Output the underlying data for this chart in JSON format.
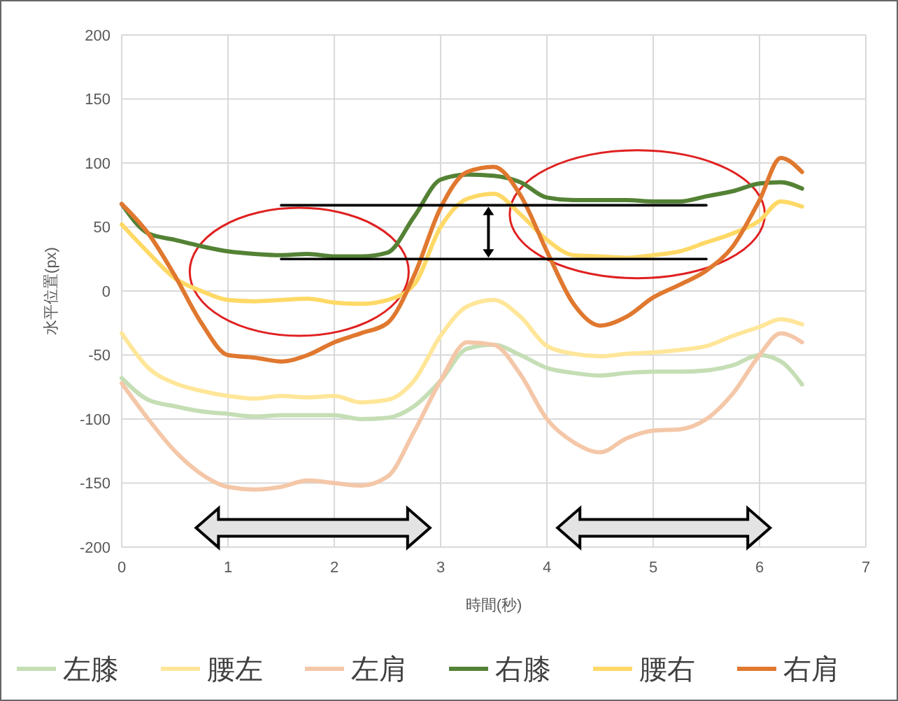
{
  "chart_data": {
    "type": "line",
    "xlabel": "時間(秒)",
    "ylabel": "水平位置(px)",
    "x": [
      0,
      0.25,
      0.5,
      0.75,
      1,
      1.25,
      1.5,
      1.75,
      2,
      2.25,
      2.5,
      2.75,
      3,
      3.25,
      3.5,
      3.75,
      4,
      4.25,
      4.5,
      4.75,
      5,
      5.25,
      5.5,
      5.75,
      6,
      6.2,
      6.4
    ],
    "xlim": [
      0,
      7
    ],
    "xticks": [
      0,
      1,
      2,
      3,
      4,
      5,
      6,
      7
    ],
    "ylim": [
      -200,
      200
    ],
    "yticks": [
      -200,
      -150,
      -100,
      -50,
      0,
      50,
      100,
      150,
      200
    ],
    "grid": true,
    "legend": "bottom",
    "marker": "none",
    "line_style": "solid",
    "series": [
      {
        "name": "左膝",
        "color": "#c5deb5",
        "values": [
          -68,
          -85,
          -90,
          -94,
          -96,
          -98,
          -97,
          -97,
          -97,
          -100,
          -99,
          -90,
          -70,
          -45,
          -42,
          -50,
          -60,
          -64,
          -66,
          -64,
          -63,
          -63,
          -62,
          -58,
          -50,
          -55,
          -73
        ]
      },
      {
        "name": "腰左",
        "color": "#ffe699",
        "values": [
          -33,
          -60,
          -72,
          -78,
          -82,
          -84,
          -82,
          -83,
          -82,
          -87,
          -85,
          -70,
          -35,
          -12,
          -7,
          -20,
          -43,
          -49,
          -51,
          -49,
          -48,
          -46,
          -43,
          -35,
          -28,
          -22,
          -26
        ]
      },
      {
        "name": "左肩",
        "color": "#f4c7a8",
        "values": [
          -72,
          -100,
          -125,
          -143,
          -153,
          -155,
          -153,
          -148,
          -150,
          -152,
          -145,
          -110,
          -70,
          -40,
          -42,
          -65,
          -100,
          -118,
          -126,
          -115,
          -109,
          -108,
          -100,
          -80,
          -50,
          -33,
          -40
        ]
      },
      {
        "name": "右膝",
        "color": "#548235",
        "values": [
          68,
          45,
          40,
          35,
          31,
          29,
          28,
          29,
          27,
          27,
          30,
          58,
          87,
          91,
          90,
          85,
          73,
          71,
          71,
          71,
          70,
          70,
          74,
          78,
          84,
          85,
          80
        ]
      },
      {
        "name": "腰右",
        "color": "#ffd966",
        "values": [
          52,
          30,
          10,
          0,
          -7,
          -8,
          -7,
          -6,
          -9,
          -10,
          -7,
          5,
          50,
          72,
          76,
          60,
          40,
          28,
          27,
          26,
          28,
          31,
          38,
          45,
          55,
          70,
          66
        ]
      },
      {
        "name": "右肩",
        "color": "#e0782f",
        "values": [
          68,
          45,
          12,
          -25,
          -50,
          -52,
          -55,
          -50,
          -40,
          -33,
          -25,
          12,
          65,
          93,
          97,
          75,
          31,
          -10,
          -27,
          -20,
          -5,
          5,
          16,
          35,
          71,
          104,
          93
        ]
      },
      {
        "color": "#000000",
        "values": [
          null,
          null,
          null,
          null,
          null,
          null,
          67,
          67,
          67,
          67,
          67,
          67,
          67,
          67,
          67,
          67,
          67,
          67,
          67,
          67,
          67,
          67,
          67,
          null,
          null,
          null,
          null
        ]
      },
      {
        "color": "#000000",
        "values": [
          null,
          null,
          null,
          null,
          null,
          null,
          25,
          25,
          25,
          25,
          25,
          25,
          25,
          25,
          25,
          25,
          25,
          25,
          25,
          25,
          25,
          25,
          25,
          null,
          null,
          null,
          null
        ]
      }
    ]
  }
}
